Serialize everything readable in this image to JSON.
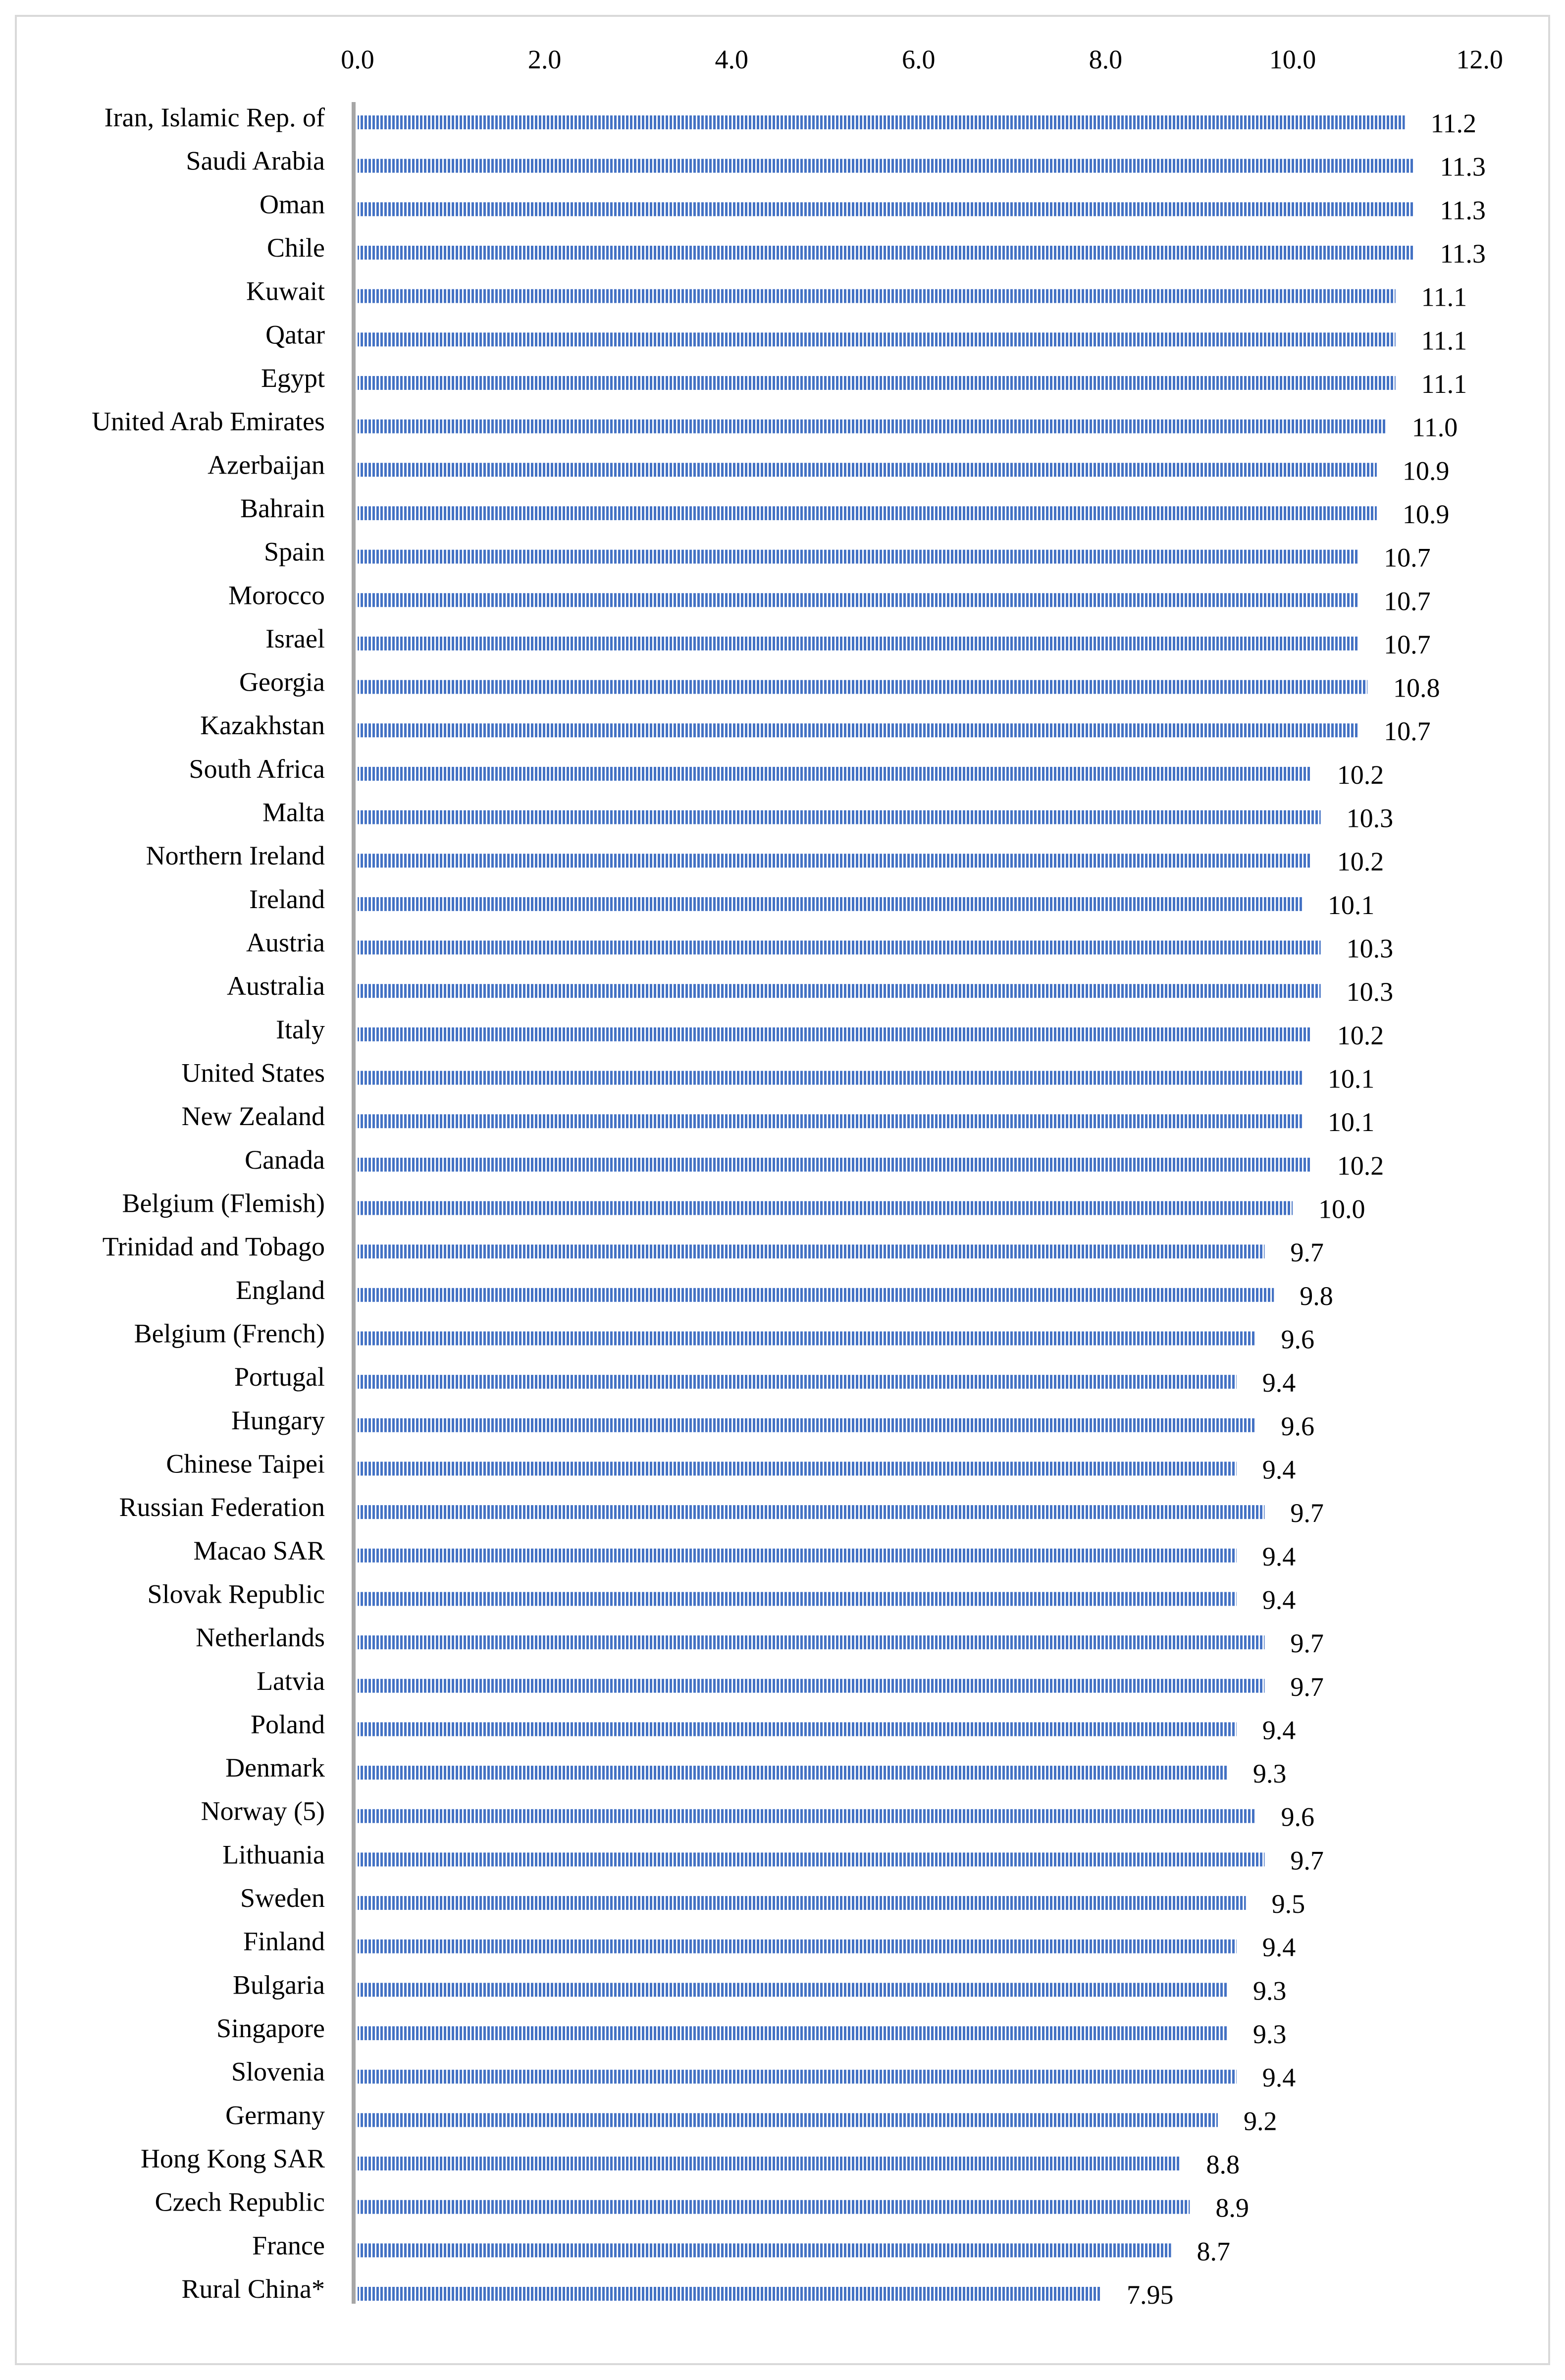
{
  "chart_data": {
    "type": "bar",
    "orientation": "horizontal",
    "title": "",
    "xlabel": "",
    "ylabel": "",
    "xlim": [
      0,
      12
    ],
    "tick_values": [
      0,
      2,
      4,
      6,
      8,
      10,
      12
    ],
    "tick_labels": [
      "0.0",
      "2.0",
      "4.0",
      "6.0",
      "8.0",
      "10.0",
      "12.0"
    ],
    "axis_position": "top",
    "grid": false,
    "legend": "none",
    "bar_color": "#4472C4",
    "bar_pattern": "vertical-stripes",
    "categories": [
      "Iran, Islamic Rep. of",
      "Saudi Arabia",
      "Oman",
      "Chile",
      "Kuwait",
      "Qatar",
      "Egypt",
      "United Arab Emirates",
      "Azerbaijan",
      "Bahrain",
      "Spain",
      "Morocco",
      "Israel",
      "Georgia",
      "Kazakhstan",
      "South Africa",
      "Malta",
      "Northern Ireland",
      "Ireland",
      "Austria",
      "Australia",
      "Italy",
      "United States",
      "New Zealand",
      "Canada",
      "Belgium (Flemish)",
      "Trinidad and Tobago",
      "England",
      "Belgium (French)",
      "Portugal",
      "Hungary",
      "Chinese Taipei",
      "Russian Federation",
      "Macao SAR",
      "Slovak Republic",
      "Netherlands",
      "Latvia",
      "Poland",
      "Denmark",
      "Norway (5)",
      "Lithuania",
      "Sweden",
      "Finland",
      "Bulgaria",
      "Singapore",
      "Slovenia",
      "Germany",
      "Hong Kong SAR",
      "Czech Republic",
      "France",
      "Rural China*"
    ],
    "values": [
      11.2,
      11.3,
      11.3,
      11.3,
      11.1,
      11.1,
      11.1,
      11.0,
      10.9,
      10.9,
      10.7,
      10.7,
      10.7,
      10.8,
      10.7,
      10.2,
      10.3,
      10.2,
      10.1,
      10.3,
      10.3,
      10.2,
      10.1,
      10.1,
      10.2,
      10.0,
      9.7,
      9.8,
      9.6,
      9.4,
      9.6,
      9.4,
      9.7,
      9.4,
      9.4,
      9.7,
      9.7,
      9.4,
      9.3,
      9.6,
      9.7,
      9.5,
      9.4,
      9.3,
      9.3,
      9.4,
      9.2,
      8.8,
      8.9,
      8.7,
      7.95
    ],
    "value_labels": [
      "11.2",
      "11.3",
      "11.3",
      "11.3",
      "11.1",
      "11.1",
      "11.1",
      "11.0",
      "10.9",
      "10.9",
      "10.7",
      "10.7",
      "10.7",
      "10.8",
      "10.7",
      "10.2",
      "10.3",
      "10.2",
      "10.1",
      "10.3",
      "10.3",
      "10.2",
      "10.1",
      "10.1",
      "10.2",
      "10.0",
      "9.7",
      "9.8",
      "9.6",
      "9.4",
      "9.6",
      "9.4",
      "9.7",
      "9.4",
      "9.4",
      "9.7",
      "9.7",
      "9.4",
      "9.3",
      "9.6",
      "9.7",
      "9.5",
      "9.4",
      "9.3",
      "9.3",
      "9.4",
      "9.2",
      "8.8",
      "8.9",
      "8.7",
      "7.95"
    ]
  }
}
